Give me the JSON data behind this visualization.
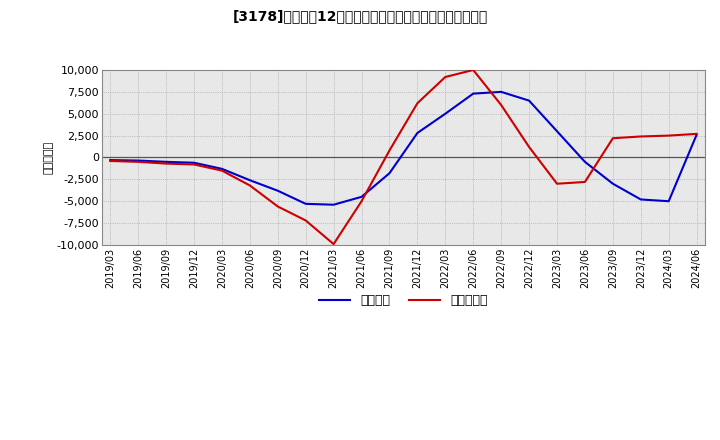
{
  "title": "[3178]　利益だ12か月移動合計の対前年同期増減額の推移",
  "ylabel": "（百万円）",
  "ylim": [
    -10000,
    10000
  ],
  "yticks": [
    -10000,
    -7500,
    -5000,
    -2500,
    0,
    2500,
    5000,
    7500,
    10000
  ],
  "background_color": "#ffffff",
  "plot_bg_color": "#e8e8e8",
  "legend_labels": [
    "経常利益",
    "当期純利益"
  ],
  "line_colors": [
    "#0000cc",
    "#cc0000"
  ],
  "x_labels": [
    "2019/03",
    "2019/06",
    "2019/09",
    "2019/12",
    "2020/03",
    "2020/06",
    "2020/09",
    "2020/12",
    "2021/03",
    "2021/06",
    "2021/09",
    "2021/12",
    "2022/03",
    "2022/06",
    "2022/09",
    "2022/12",
    "2023/03",
    "2023/06",
    "2023/09",
    "2023/12",
    "2024/03",
    "2024/06"
  ],
  "blue_data": [
    -300,
    -350,
    -500,
    -600,
    -1300,
    -2600,
    -3800,
    -5300,
    -5400,
    -4500,
    -1800,
    2800,
    5000,
    7300,
    7500,
    6500,
    3000,
    -500,
    -3000,
    -4800,
    -5000,
    2600
  ],
  "red_data": [
    -400,
    -500,
    -700,
    -800,
    -1500,
    -3200,
    -5600,
    -7200,
    -9900,
    -5000,
    800,
    6200,
    9200,
    10000,
    6000,
    1200,
    -3000,
    -2800,
    2200,
    2400,
    2500,
    2700
  ]
}
